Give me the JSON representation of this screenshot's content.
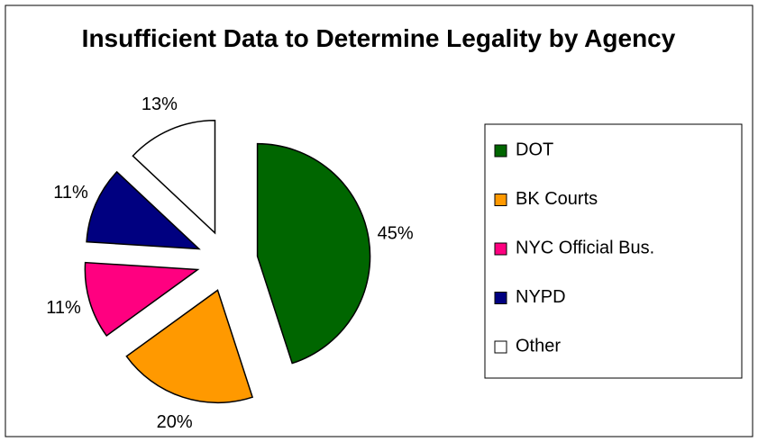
{
  "chart_data": {
    "type": "pie",
    "title": "Insufficient Data to Determine Legality by Agency",
    "categories": [
      "DOT",
      "BK Courts",
      "NYC Official Bus.",
      "NYPD",
      "Other"
    ],
    "values": [
      45,
      20,
      11,
      11,
      13
    ],
    "value_labels": [
      "45%",
      "20%",
      "11%",
      "11%",
      "13%"
    ],
    "colors": [
      "#006600",
      "#ff9900",
      "#ff0080",
      "#000080",
      "#ffffff"
    ],
    "legend": "right"
  }
}
